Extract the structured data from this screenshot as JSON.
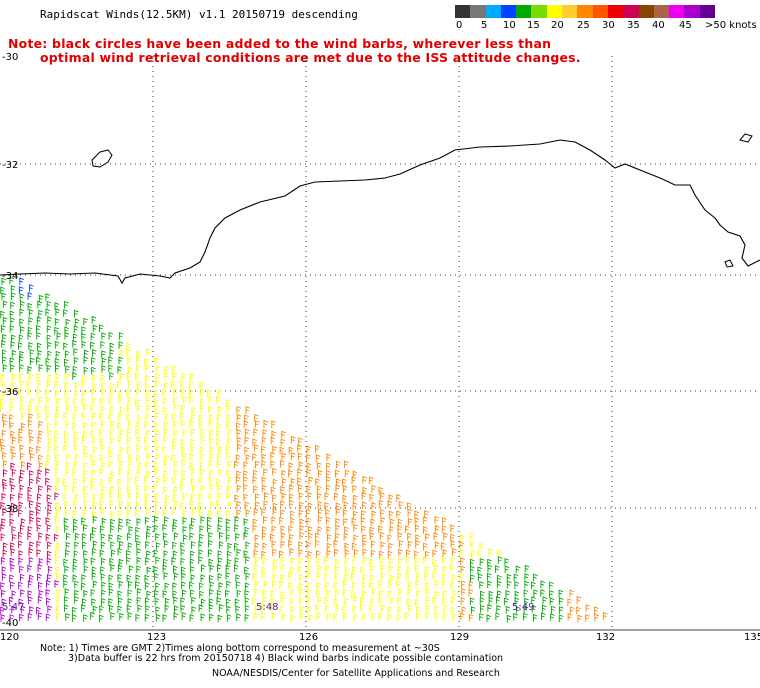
{
  "header": {
    "title": "Rapidscat Winds(12.5KM) v1.1 20150719 descending"
  },
  "notice": {
    "line1": "Note: black circles have been added to the wind barbs, wherever less than",
    "line2": "optimal wind retrieval conditions are met due to the ISS attitude changes."
  },
  "color_scale": {
    "colors": [
      "#333333",
      "#777777",
      "#00aaff",
      "#0044ff",
      "#00aa00",
      "#77dd00",
      "#ffff00",
      "#ffcc33",
      "#ff8800",
      "#ff5500",
      "#ee0000",
      "#cc0055",
      "#884400",
      "#aa6644",
      "#ee00ee",
      "#aa00cc",
      "#660099"
    ],
    "labels": [
      {
        "text": "0",
        "pos": 0
      },
      {
        "text": "5",
        "pos": 1
      },
      {
        "text": "10",
        "pos": 2
      },
      {
        "text": "15",
        "pos": 3
      },
      {
        "text": "20",
        "pos": 4
      },
      {
        "text": "25",
        "pos": 5
      },
      {
        "text": "30",
        "pos": 6
      },
      {
        "text": "35",
        "pos": 7
      },
      {
        "text": "40",
        "pos": 8
      },
      {
        "text": "45",
        "pos": 9
      },
      {
        "text": ">50 knots",
        "pos": 10
      }
    ]
  },
  "map": {
    "lat_labels": [
      "-30",
      "-32",
      "-34",
      "-36",
      "-38",
      "-40"
    ],
    "lon_labels": [
      "120",
      "123",
      "126",
      "129",
      "132",
      "135"
    ],
    "pass_times": [
      "5:47",
      "5:48",
      "5:49"
    ]
  },
  "footer": {
    "line1": "Note: 1) Times are GMT 2)Times along bottom correspond to measurement at ~30S",
    "line2": "3)Data buffer is 22 hrs from 20150718 4) Black wind barbs indicate possible contamination",
    "line3": "NOAA/NESDIS/Center for Satellite Applications and Research"
  }
}
